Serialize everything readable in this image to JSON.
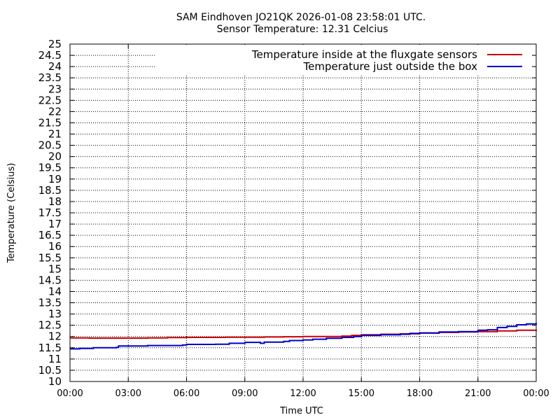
{
  "chart_data": {
    "type": "line",
    "title": "SAM Eindhoven JO21QK 2026-01-08 23:58:01 UTC.",
    "subtitle": "Sensor Temperature: 12.31 Celcius",
    "xlabel": "Time UTC",
    "ylabel": "Temperature (Celsius)",
    "xlim": [
      0,
      24
    ],
    "ylim": [
      10,
      25
    ],
    "grid": true,
    "legend_position": "top-right",
    "x_ticks": [
      {
        "value": 0,
        "label": "00:00"
      },
      {
        "value": 3,
        "label": "03:00"
      },
      {
        "value": 6,
        "label": "06:00"
      },
      {
        "value": 9,
        "label": "09:00"
      },
      {
        "value": 12,
        "label": "12:00"
      },
      {
        "value": 15,
        "label": "15:00"
      },
      {
        "value": 18,
        "label": "18:00"
      },
      {
        "value": 21,
        "label": "21:00"
      },
      {
        "value": 24,
        "label": "00:00"
      }
    ],
    "y_ticks": [
      {
        "value": 10,
        "label": "10"
      },
      {
        "value": 10.5,
        "label": "10.5"
      },
      {
        "value": 11,
        "label": "11"
      },
      {
        "value": 11.5,
        "label": "11.5"
      },
      {
        "value": 12,
        "label": "12"
      },
      {
        "value": 12.5,
        "label": "12.5"
      },
      {
        "value": 13,
        "label": "13"
      },
      {
        "value": 13.5,
        "label": "13.5"
      },
      {
        "value": 14,
        "label": "14"
      },
      {
        "value": 14.5,
        "label": "14.5"
      },
      {
        "value": 15,
        "label": "15"
      },
      {
        "value": 15.5,
        "label": "15.5"
      },
      {
        "value": 16,
        "label": "16"
      },
      {
        "value": 16.5,
        "label": "16.5"
      },
      {
        "value": 17,
        "label": "17"
      },
      {
        "value": 17.5,
        "label": "17.5"
      },
      {
        "value": 18,
        "label": "18"
      },
      {
        "value": 18.5,
        "label": "18.5"
      },
      {
        "value": 19,
        "label": "19"
      },
      {
        "value": 19.5,
        "label": "19.5"
      },
      {
        "value": 20,
        "label": "20"
      },
      {
        "value": 20.5,
        "label": "20.5"
      },
      {
        "value": 21,
        "label": "21"
      },
      {
        "value": 21.5,
        "label": "21.5"
      },
      {
        "value": 22,
        "label": "22"
      },
      {
        "value": 22.5,
        "label": "22.5"
      },
      {
        "value": 23,
        "label": "23"
      },
      {
        "value": 23.5,
        "label": "23.5"
      },
      {
        "value": 24,
        "label": "24"
      },
      {
        "value": 24.5,
        "label": "24.5"
      },
      {
        "value": 25,
        "label": "25"
      }
    ],
    "series": [
      {
        "name": "Temperature inside at the fluxgate sensors",
        "color": "#cc0000",
        "x": [
          0,
          1,
          2,
          3,
          4,
          5,
          6,
          7,
          8,
          9,
          10,
          11,
          12,
          13,
          14,
          14.5,
          15,
          16,
          17,
          18,
          19,
          20,
          21,
          22,
          23,
          24
        ],
        "y": [
          11.94,
          11.93,
          11.93,
          11.93,
          11.94,
          11.95,
          11.96,
          11.96,
          11.97,
          11.97,
          11.98,
          11.99,
          12.0,
          12.0,
          12.02,
          12.05,
          12.08,
          12.1,
          12.12,
          12.15,
          12.18,
          12.2,
          12.22,
          12.25,
          12.28,
          12.3
        ]
      },
      {
        "name": "Temperature just outside the box",
        "color": "#0000cc",
        "x": [
          0,
          0.5,
          1.2,
          2.4,
          2.5,
          4,
          5.8,
          6,
          7.5,
          8.2,
          9,
          9.8,
          10,
          11,
          11.3,
          12,
          12.5,
          13.2,
          14,
          14.6,
          15,
          16,
          17,
          17.5,
          18,
          19,
          19.5,
          20,
          21,
          21.5,
          22,
          22.5,
          23,
          23.5,
          24
        ],
        "y": [
          11.45,
          11.47,
          11.5,
          11.52,
          11.58,
          11.6,
          11.62,
          11.65,
          11.66,
          11.7,
          11.74,
          11.7,
          11.75,
          11.78,
          11.82,
          11.85,
          11.88,
          11.92,
          11.96,
          12.0,
          12.05,
          12.08,
          12.1,
          12.14,
          12.16,
          12.2,
          12.2,
          12.22,
          12.28,
          12.3,
          12.4,
          12.45,
          12.52,
          12.56,
          12.6
        ]
      }
    ]
  }
}
